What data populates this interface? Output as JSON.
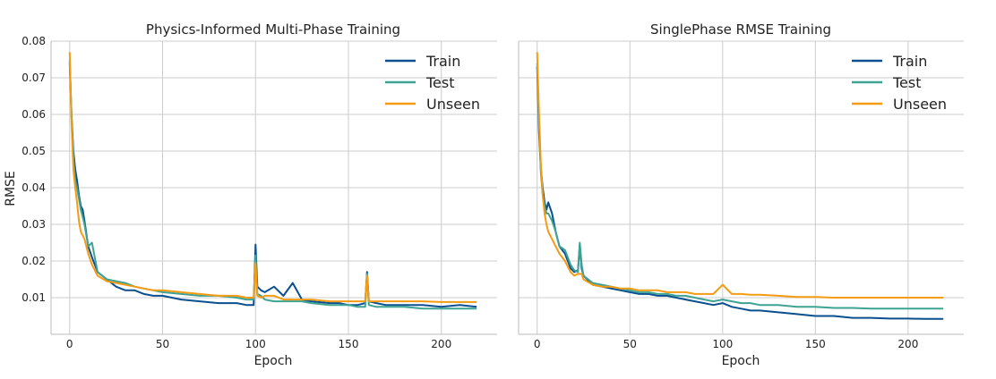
{
  "chart_data": [
    {
      "type": "line",
      "title": "Physics-Informed Multi-Phase Training",
      "xlabel": "Epoch",
      "ylabel": "RMSE",
      "xlim": [
        -10,
        230
      ],
      "ylim": [
        0.0,
        0.08
      ],
      "xticks": [
        0,
        50,
        100,
        150,
        200
      ],
      "yticks": [
        0.01,
        0.02,
        0.03,
        0.04,
        0.05,
        0.06,
        0.07,
        0.08
      ],
      "grid": true,
      "legend": "top-right",
      "x": [
        0,
        1,
        2,
        3,
        4,
        5,
        6,
        7,
        8,
        10,
        12,
        15,
        20,
        25,
        30,
        35,
        40,
        45,
        50,
        60,
        70,
        80,
        90,
        95,
        99,
        100,
        101,
        103,
        105,
        110,
        115,
        120,
        125,
        130,
        140,
        145,
        150,
        155,
        159,
        160,
        161,
        165,
        170,
        180,
        190,
        200,
        210,
        219
      ],
      "series": [
        {
          "name": "Train",
          "color": "#0a4f8f",
          "values": [
            0.074,
            0.06,
            0.05,
            0.045,
            0.042,
            0.038,
            0.035,
            0.034,
            0.031,
            0.024,
            0.021,
            0.017,
            0.015,
            0.013,
            0.012,
            0.012,
            0.011,
            0.0105,
            0.0105,
            0.0095,
            0.009,
            0.0085,
            0.0085,
            0.008,
            0.008,
            0.0245,
            0.013,
            0.012,
            0.0115,
            0.013,
            0.0105,
            0.014,
            0.0095,
            0.009,
            0.0085,
            0.0085,
            0.008,
            0.008,
            0.0085,
            0.017,
            0.009,
            0.0085,
            0.008,
            0.008,
            0.008,
            0.0075,
            0.008,
            0.0075
          ]
        },
        {
          "name": "Test",
          "color": "#3fa394",
          "values": [
            0.075,
            0.06,
            0.048,
            0.042,
            0.04,
            0.037,
            0.034,
            0.032,
            0.03,
            0.024,
            0.025,
            0.017,
            0.015,
            0.0145,
            0.014,
            0.013,
            0.0125,
            0.012,
            0.0115,
            0.011,
            0.0105,
            0.0105,
            0.01,
            0.0095,
            0.0095,
            0.0215,
            0.011,
            0.0105,
            0.0095,
            0.009,
            0.009,
            0.009,
            0.009,
            0.0085,
            0.008,
            0.008,
            0.008,
            0.0075,
            0.0075,
            0.0165,
            0.008,
            0.0075,
            0.0075,
            0.0075,
            0.007,
            0.007,
            0.007,
            0.007
          ]
        },
        {
          "name": "Unseen",
          "color": "#f49b12",
          "values": [
            0.077,
            0.058,
            0.045,
            0.04,
            0.036,
            0.031,
            0.028,
            0.027,
            0.026,
            0.022,
            0.019,
            0.016,
            0.0145,
            0.014,
            0.0135,
            0.013,
            0.0125,
            0.012,
            0.012,
            0.0115,
            0.011,
            0.0105,
            0.0105,
            0.01,
            0.01,
            0.0195,
            0.0105,
            0.01,
            0.0105,
            0.0105,
            0.0095,
            0.0095,
            0.0095,
            0.0095,
            0.009,
            0.009,
            0.009,
            0.009,
            0.009,
            0.016,
            0.009,
            0.009,
            0.009,
            0.009,
            0.009,
            0.0088,
            0.0088,
            0.0088
          ]
        }
      ]
    },
    {
      "type": "line",
      "title": "SinglePhase RMSE Training",
      "xlabel": "Epoch",
      "ylabel": "",
      "xlim": [
        -10,
        230
      ],
      "ylim": [
        0.0,
        0.08
      ],
      "xticks": [
        0,
        50,
        100,
        150,
        200
      ],
      "yticks": [
        0.01,
        0.02,
        0.03,
        0.04,
        0.05,
        0.06,
        0.07,
        0.08
      ],
      "grid": true,
      "legend": "top-right",
      "x": [
        0,
        1,
        2,
        3,
        4,
        5,
        6,
        8,
        10,
        12,
        15,
        18,
        20,
        22,
        23,
        24,
        25,
        30,
        35,
        40,
        45,
        50,
        55,
        60,
        65,
        70,
        75,
        80,
        85,
        90,
        95,
        100,
        105,
        110,
        115,
        120,
        130,
        140,
        150,
        160,
        170,
        180,
        190,
        200,
        210,
        219
      ],
      "series": [
        {
          "name": "Train",
          "color": "#0a4f8f",
          "values": [
            0.073,
            0.055,
            0.045,
            0.04,
            0.036,
            0.034,
            0.036,
            0.033,
            0.028,
            0.024,
            0.022,
            0.018,
            0.017,
            0.0175,
            0.0245,
            0.018,
            0.016,
            0.0135,
            0.013,
            0.0125,
            0.012,
            0.0115,
            0.011,
            0.011,
            0.0105,
            0.0105,
            0.01,
            0.0095,
            0.009,
            0.0085,
            0.008,
            0.0085,
            0.0075,
            0.007,
            0.0065,
            0.0065,
            0.006,
            0.0055,
            0.005,
            0.005,
            0.0045,
            0.0045,
            0.0043,
            0.0043,
            0.0042,
            0.0042
          ]
        },
        {
          "name": "Test",
          "color": "#3fa394",
          "values": [
            0.074,
            0.058,
            0.044,
            0.038,
            0.035,
            0.033,
            0.033,
            0.031,
            0.028,
            0.024,
            0.023,
            0.019,
            0.0175,
            0.017,
            0.025,
            0.019,
            0.016,
            0.014,
            0.0135,
            0.013,
            0.0125,
            0.012,
            0.0115,
            0.0115,
            0.011,
            0.011,
            0.0105,
            0.0105,
            0.01,
            0.0095,
            0.009,
            0.0095,
            0.009,
            0.0085,
            0.0085,
            0.008,
            0.008,
            0.0075,
            0.0075,
            0.0072,
            0.0072,
            0.007,
            0.007,
            0.007,
            0.007,
            0.007
          ]
        },
        {
          "name": "Unseen",
          "color": "#f49b12",
          "values": [
            0.077,
            0.06,
            0.046,
            0.038,
            0.033,
            0.03,
            0.028,
            0.026,
            0.024,
            0.022,
            0.02,
            0.017,
            0.016,
            0.0165,
            0.0165,
            0.0165,
            0.015,
            0.0135,
            0.013,
            0.013,
            0.0125,
            0.0125,
            0.012,
            0.012,
            0.012,
            0.0115,
            0.0115,
            0.0115,
            0.011,
            0.011,
            0.011,
            0.0135,
            0.011,
            0.011,
            0.0108,
            0.0108,
            0.0105,
            0.0102,
            0.0102,
            0.01,
            0.01,
            0.01,
            0.01,
            0.01,
            0.01,
            0.01
          ]
        }
      ]
    }
  ]
}
